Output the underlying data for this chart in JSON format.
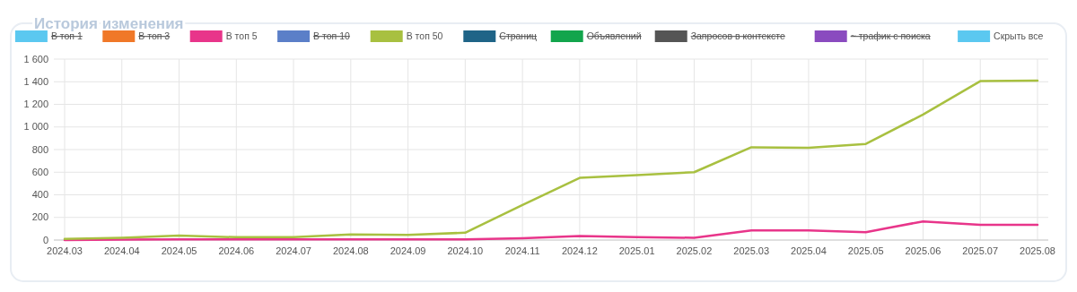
{
  "chart_data": {
    "type": "line",
    "title": "История изменения",
    "legend": "top",
    "grid": true,
    "categories": [
      "2024.03",
      "2024.04",
      "2024.05",
      "2024.06",
      "2024.07",
      "2024.08",
      "2024.09",
      "2024.10",
      "2024.11",
      "2024.12",
      "2025.01",
      "2025.02",
      "2025.03",
      "2025.04",
      "2025.05",
      "2025.06",
      "2025.07",
      "2025.08"
    ],
    "ylim": [
      0,
      1600
    ],
    "yticks": [
      0,
      {
        "value": 200,
        "label": "200"
      },
      {
        "value": 400,
        "label": "400"
      },
      {
        "value": 600,
        "label": "600"
      },
      {
        "value": 800,
        "label": "800"
      },
      {
        "value": 1000,
        "label": "1 000"
      },
      {
        "value": 1200,
        "label": "1 200"
      },
      {
        "value": 1400,
        "label": "1 400"
      },
      {
        "value": 1600,
        "label": "1 600"
      }
    ],
    "series": [
      {
        "name": "В топ 1",
        "color": "#5bc8f0",
        "values": [
          null,
          null,
          null,
          null,
          null,
          null,
          null,
          null,
          null,
          null,
          null,
          null,
          null,
          null,
          null,
          null,
          null,
          null
        ]
      },
      {
        "name": "В топ 3",
        "color": "#f07828",
        "values": [
          null,
          null,
          null,
          null,
          null,
          null,
          null,
          null,
          null,
          null,
          null,
          null,
          null,
          null,
          null,
          null,
          null,
          null
        ]
      },
      {
        "name": "В топ 5",
        "color": "#e8358a",
        "values": [
          0,
          3,
          5,
          5,
          5,
          5,
          5,
          5,
          15,
          35,
          25,
          20,
          85,
          85,
          70,
          165,
          135,
          135
        ]
      },
      {
        "name": "В топ 10",
        "color": "#5b7fc8",
        "values": [
          null,
          null,
          null,
          null,
          null,
          null,
          null,
          null,
          null,
          null,
          null,
          null,
          null,
          null,
          null,
          null,
          null,
          null
        ]
      },
      {
        "name": "В топ 50",
        "color": "#a8c040",
        "values": [
          10,
          20,
          40,
          25,
          25,
          50,
          45,
          65,
          310,
          550,
          575,
          600,
          820,
          815,
          850,
          1110,
          1405,
          1410
        ]
      },
      {
        "name": "Страниц",
        "color": "#1f6487",
        "values": [
          null,
          null,
          null,
          null,
          null,
          null,
          null,
          null,
          null,
          null,
          null,
          null,
          null,
          null,
          null,
          null,
          null,
          null
        ]
      },
      {
        "name": "Объявлений",
        "color": "#12a54c",
        "values": [
          null,
          null,
          null,
          null,
          null,
          null,
          null,
          null,
          null,
          null,
          null,
          null,
          null,
          null,
          null,
          null,
          null,
          null
        ]
      },
      {
        "name": "Запросов в контексте",
        "color": "#555555",
        "values": [
          null,
          null,
          null,
          null,
          null,
          null,
          null,
          null,
          null,
          null,
          null,
          null,
          null,
          null,
          null,
          null,
          null,
          null
        ]
      },
      {
        "name": "~ трафик с поиска",
        "color": "#8a4bbf",
        "values": [
          null,
          null,
          null,
          null,
          null,
          null,
          null,
          null,
          null,
          null,
          null,
          null,
          null,
          null,
          null,
          null,
          null,
          null
        ]
      }
    ],
    "annotations": [
      "Скрыть все"
    ]
  }
}
